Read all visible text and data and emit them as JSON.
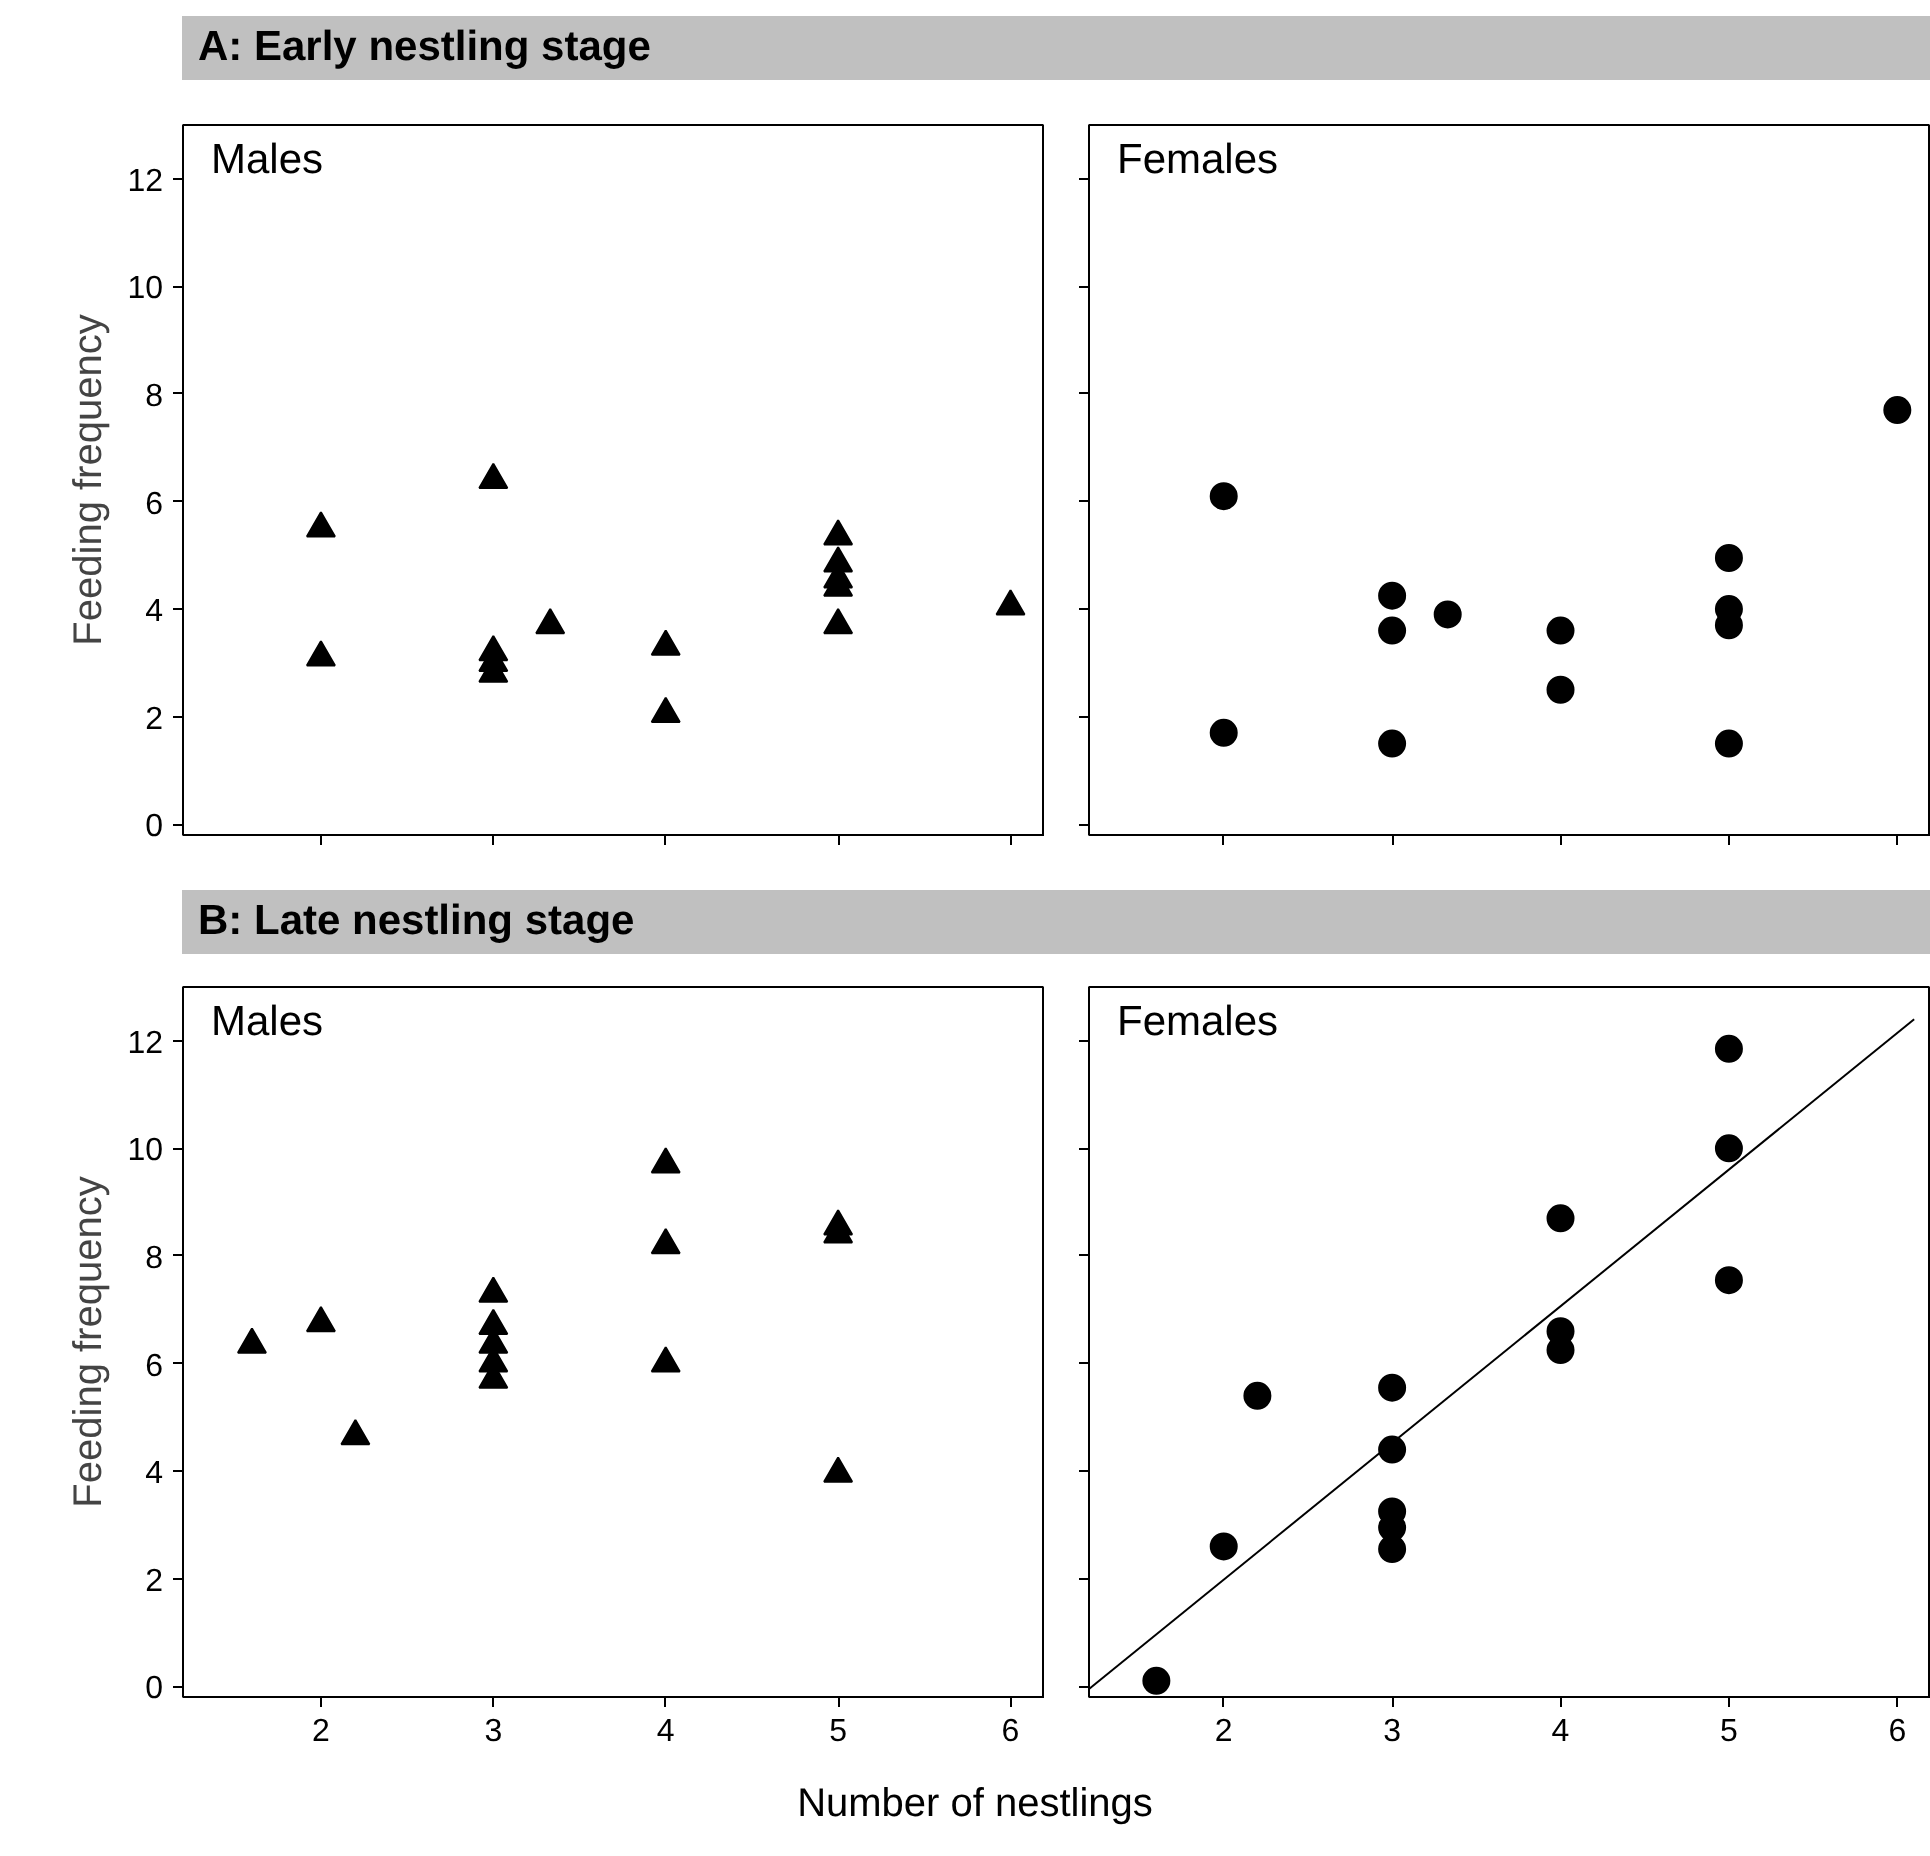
{
  "chart_data": [
    {
      "type": "scatter",
      "title": "A: Early nestling stage",
      "ylabel": "Feeding frequency",
      "xlim": [
        1.2,
        6.2
      ],
      "ylim": [
        -0.2,
        13
      ],
      "xticks": [
        2,
        3,
        4,
        5,
        6
      ],
      "yticks": [
        0,
        2,
        4,
        6,
        8,
        10,
        12
      ],
      "tick_labels": "y",
      "grid": false,
      "series": [
        {
          "name": "Males",
          "color": "#000000",
          "marker": "triangle",
          "x": [
            2,
            2,
            3,
            3,
            3,
            3,
            3.33,
            4,
            4,
            5,
            5,
            5,
            5,
            5,
            6
          ],
          "values": [
            5.5,
            3.1,
            6.4,
            3.2,
            3.0,
            2.8,
            3.7,
            3.3,
            2.05,
            5.35,
            4.85,
            4.55,
            4.4,
            3.7,
            4.05
          ]
        }
      ]
    },
    {
      "type": "scatter",
      "xlim": [
        1.2,
        6.2
      ],
      "ylim": [
        -0.2,
        13
      ],
      "xticks": [
        2,
        3,
        4,
        5,
        6
      ],
      "yticks": [
        0,
        2,
        4,
        6,
        8,
        10,
        12
      ],
      "tick_labels": false,
      "grid": false,
      "series": [
        {
          "name": "Females",
          "color": "#000000",
          "marker": "circle",
          "x": [
            2,
            2,
            3,
            3,
            3,
            3.33,
            4,
            4,
            5,
            5,
            5,
            5,
            6
          ],
          "values": [
            6.1,
            1.7,
            4.25,
            3.6,
            1.5,
            3.9,
            3.6,
            2.5,
            4.95,
            4.0,
            3.7,
            1.5,
            7.7
          ]
        }
      ]
    },
    {
      "type": "scatter",
      "title": "B: Late nestling stage",
      "ylabel": "Feeding frequency",
      "xlabel": "Number of nestlings",
      "xlim": [
        1.2,
        6.2
      ],
      "ylim": [
        -0.2,
        13
      ],
      "xticks": [
        2,
        3,
        4,
        5,
        6
      ],
      "yticks": [
        0,
        2,
        4,
        6,
        8,
        10,
        12
      ],
      "grid": false,
      "series": [
        {
          "name": "Males",
          "color": "#000000",
          "marker": "triangle",
          "x": [
            1.6,
            2,
            2.2,
            3,
            3,
            3,
            3,
            3,
            4,
            4,
            4,
            5,
            5,
            5
          ],
          "values": [
            6.35,
            6.75,
            4.65,
            7.3,
            6.7,
            6.35,
            6.0,
            5.7,
            9.7,
            8.2,
            6.0,
            8.55,
            8.4,
            3.95
          ]
        }
      ]
    },
    {
      "type": "scatter",
      "xlim": [
        1.2,
        6.2
      ],
      "ylim": [
        -0.2,
        13
      ],
      "xticks": [
        2,
        3,
        4,
        5,
        6
      ],
      "yticks": [
        0,
        2,
        4,
        6,
        8,
        10,
        12
      ],
      "tick_labels": "x",
      "grid": false,
      "series": [
        {
          "name": "Females",
          "color": "#000000",
          "marker": "circle",
          "x": [
            1.6,
            2,
            2.2,
            3,
            3,
            3,
            3,
            3,
            4,
            4,
            4,
            5,
            5,
            5
          ],
          "values": [
            0.1,
            2.6,
            5.4,
            5.55,
            4.4,
            3.25,
            2.95,
            2.55,
            8.7,
            6.6,
            6.25,
            11.85,
            10.0,
            7.55
          ]
        },
        {
          "type": "line",
          "color": "#000000",
          "line_style": "solid",
          "marker": "none",
          "x": [
            1.2,
            6.1
          ],
          "values": [
            -0.05,
            12.4
          ]
        }
      ]
    }
  ]
}
